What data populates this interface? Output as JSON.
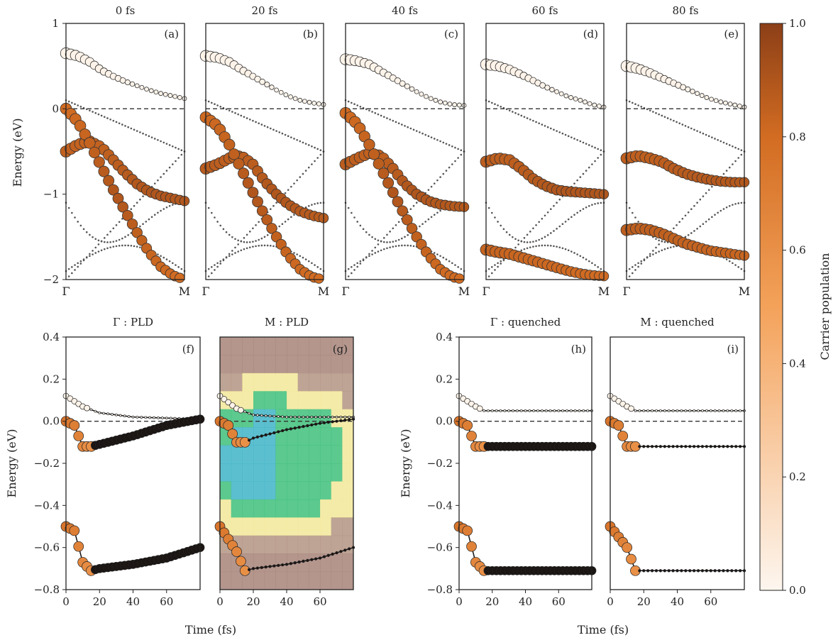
{
  "figure": {
    "top_titles": [
      "0 fs",
      "20 fs",
      "40 fs",
      "60 fs",
      "80 fs"
    ],
    "bottom_titles": [
      "Γ : PLD",
      "M : PLD",
      "Γ : quenched",
      "M : quenched"
    ],
    "top_ylabel": "Energy (eV)",
    "bottom_ylabel": "Energy (eV)",
    "xlabel": "Time (fs)",
    "colorbar_label": "Carrier population",
    "k_start_label": "Γ",
    "k_end_label": "M",
    "colors": {
      "cmap_low": "#fdf6ef",
      "cmap_mid": "#f4a25a",
      "cmap_high": "#8c3f17",
      "edge": "#333333",
      "heat_blue": "#3fb4c7",
      "heat_green": "#3fc07a",
      "heat_yellow": "#f2e79a",
      "heat_mauve": "#a78479"
    }
  },
  "chart_data": [
    {
      "type": "scatter",
      "panel": "(a)",
      "title": "0 fs",
      "xlabel": "",
      "ylabel": "Energy (eV)",
      "ylim": [
        -2,
        1
      ],
      "xticks": [
        "Γ",
        "M"
      ],
      "yticks": [
        -2,
        -1,
        0,
        1
      ],
      "series": [
        {
          "kind": "valence",
          "x": [
            0,
            0.1,
            0.2,
            0.3,
            0.4,
            0.5,
            0.6,
            0.7,
            0.8,
            0.9,
            1.0
          ],
          "y": [
            -0.5,
            -0.42,
            -0.38,
            -0.45,
            -0.6,
            -0.75,
            -0.88,
            -0.97,
            -1.02,
            -1.05,
            -1.08
          ]
        },
        {
          "kind": "valence",
          "x": [
            0,
            0.1,
            0.2,
            0.3,
            0.4,
            0.5,
            0.6,
            0.7,
            0.8,
            0.9,
            1.0
          ],
          "y": [
            0,
            -0.15,
            -0.4,
            -0.68,
            -0.95,
            -1.2,
            -1.45,
            -1.68,
            -1.85,
            -1.95,
            -2.0
          ]
        },
        {
          "kind": "conduction",
          "x": [
            0,
            0.1,
            0.2,
            0.3,
            0.4,
            0.5,
            0.6,
            0.7,
            0.8,
            0.9,
            1.0
          ],
          "y": [
            0.65,
            0.62,
            0.55,
            0.45,
            0.38,
            0.32,
            0.27,
            0.22,
            0.18,
            0.15,
            0.12
          ]
        }
      ]
    },
    {
      "type": "scatter",
      "panel": "(b)",
      "title": "20 fs",
      "ylim": [
        -2,
        1
      ],
      "xticks": [
        "Γ",
        "M"
      ],
      "series": [
        {
          "kind": "valence",
          "x": [
            0,
            0.1,
            0.2,
            0.3,
            0.4,
            0.5,
            0.6,
            0.7,
            0.8,
            0.9,
            1.0
          ],
          "y": [
            -0.7,
            -0.65,
            -0.58,
            -0.55,
            -0.65,
            -0.85,
            -1.0,
            -1.12,
            -1.2,
            -1.25,
            -1.28
          ]
        },
        {
          "kind": "valence",
          "x": [
            0,
            0.1,
            0.2,
            0.3,
            0.4,
            0.5,
            0.6,
            0.7,
            0.8,
            0.9,
            1.0
          ],
          "y": [
            -0.1,
            -0.2,
            -0.42,
            -0.7,
            -0.98,
            -1.25,
            -1.5,
            -1.72,
            -1.88,
            -1.97,
            -2.0
          ]
        },
        {
          "kind": "conduction",
          "x": [
            0,
            0.1,
            0.2,
            0.3,
            0.4,
            0.5,
            0.6,
            0.7,
            0.8,
            0.9,
            1.0
          ],
          "y": [
            0.62,
            0.6,
            0.55,
            0.46,
            0.38,
            0.3,
            0.22,
            0.15,
            0.1,
            0.07,
            0.05
          ]
        }
      ]
    },
    {
      "type": "scatter",
      "panel": "(c)",
      "title": "40 fs",
      "ylim": [
        -2,
        1
      ],
      "xticks": [
        "Γ",
        "M"
      ],
      "series": [
        {
          "kind": "valence",
          "x": [
            0,
            0.1,
            0.2,
            0.3,
            0.4,
            0.5,
            0.6,
            0.7,
            0.8,
            0.9,
            1.0
          ],
          "y": [
            -0.65,
            -0.58,
            -0.52,
            -0.55,
            -0.7,
            -0.88,
            -1.0,
            -1.08,
            -1.12,
            -1.14,
            -1.15
          ]
        },
        {
          "kind": "valence",
          "x": [
            0,
            0.1,
            0.2,
            0.3,
            0.4,
            0.5,
            0.6,
            0.7,
            0.8,
            0.9,
            1.0
          ],
          "y": [
            -0.05,
            -0.18,
            -0.42,
            -0.7,
            -0.98,
            -1.25,
            -1.5,
            -1.72,
            -1.88,
            -1.97,
            -2.0
          ]
        },
        {
          "kind": "conduction",
          "x": [
            0,
            0.1,
            0.2,
            0.3,
            0.4,
            0.5,
            0.6,
            0.7,
            0.8,
            0.9,
            1.0
          ],
          "y": [
            0.58,
            0.56,
            0.52,
            0.44,
            0.36,
            0.28,
            0.2,
            0.13,
            0.08,
            0.05,
            0.04
          ]
        }
      ]
    },
    {
      "type": "scatter",
      "panel": "(d)",
      "title": "60 fs",
      "ylim": [
        -2,
        1
      ],
      "xticks": [
        "Γ",
        "M"
      ],
      "series": [
        {
          "kind": "valence",
          "x": [
            0,
            0.1,
            0.2,
            0.3,
            0.4,
            0.5,
            0.6,
            0.7,
            0.8,
            0.9,
            1.0
          ],
          "y": [
            -0.62,
            -0.58,
            -0.6,
            -0.7,
            -0.82,
            -0.9,
            -0.95,
            -0.97,
            -0.98,
            -0.99,
            -1.0
          ]
        },
        {
          "kind": "valence",
          "x": [
            0,
            0.1,
            0.2,
            0.3,
            0.4,
            0.5,
            0.6,
            0.7,
            0.8,
            0.9,
            1.0
          ],
          "y": [
            -1.65,
            -1.68,
            -1.7,
            -1.74,
            -1.78,
            -1.82,
            -1.86,
            -1.9,
            -1.93,
            -1.95,
            -1.96
          ]
        },
        {
          "kind": "conduction",
          "x": [
            0,
            0.1,
            0.2,
            0.3,
            0.4,
            0.5,
            0.6,
            0.7,
            0.8,
            0.9,
            1.0
          ],
          "y": [
            0.52,
            0.5,
            0.46,
            0.4,
            0.33,
            0.26,
            0.2,
            0.14,
            0.1,
            0.05,
            0.02
          ]
        }
      ]
    },
    {
      "type": "scatter",
      "panel": "(e)",
      "title": "80 fs",
      "ylim": [
        -2,
        1
      ],
      "xticks": [
        "Γ",
        "M"
      ],
      "series": [
        {
          "kind": "valence",
          "x": [
            0,
            0.1,
            0.2,
            0.3,
            0.4,
            0.5,
            0.6,
            0.7,
            0.8,
            0.9,
            1.0
          ],
          "y": [
            -0.58,
            -0.55,
            -0.58,
            -0.62,
            -0.7,
            -0.76,
            -0.8,
            -0.83,
            -0.85,
            -0.86,
            -0.86
          ]
        },
        {
          "kind": "valence",
          "x": [
            0,
            0.1,
            0.2,
            0.3,
            0.4,
            0.5,
            0.6,
            0.7,
            0.8,
            0.9,
            1.0
          ],
          "y": [
            -1.42,
            -1.4,
            -1.42,
            -1.46,
            -1.52,
            -1.58,
            -1.62,
            -1.66,
            -1.68,
            -1.7,
            -1.72
          ]
        },
        {
          "kind": "conduction",
          "x": [
            0,
            0.1,
            0.2,
            0.3,
            0.4,
            0.5,
            0.6,
            0.7,
            0.8,
            0.9,
            1.0
          ],
          "y": [
            0.5,
            0.47,
            0.42,
            0.36,
            0.3,
            0.24,
            0.18,
            0.12,
            0.08,
            0.05,
            0.02
          ]
        }
      ]
    },
    {
      "type": "scatter",
      "panel": "(f)",
      "title": "Γ : PLD",
      "xlabel": "Time (fs)",
      "ylabel": "Energy (eV)",
      "xlim": [
        0,
        80
      ],
      "ylim": [
        -0.8,
        0.4
      ],
      "xticks": [
        0,
        20,
        40,
        60
      ],
      "yticks": [
        -0.8,
        -0.6,
        -0.4,
        -0.2,
        0.0,
        0.2,
        0.4
      ],
      "series": [
        {
          "kind": "upper",
          "x": [
            0,
            10,
            20,
            40,
            60,
            80
          ],
          "y": [
            0.12,
            0.07,
            0.04,
            0.02,
            0.015,
            0.01
          ]
        },
        {
          "kind": "middle",
          "x": [
            0,
            5,
            10,
            15,
            20,
            40,
            60,
            80
          ],
          "y": [
            0.0,
            -0.02,
            -0.12,
            -0.12,
            -0.11,
            -0.07,
            -0.02,
            0.01
          ]
        },
        {
          "kind": "lower",
          "x": [
            0,
            5,
            10,
            15,
            20,
            40,
            60,
            80
          ],
          "y": [
            -0.5,
            -0.52,
            -0.67,
            -0.71,
            -0.7,
            -0.68,
            -0.65,
            -0.6
          ]
        }
      ]
    },
    {
      "type": "heatmap",
      "panel": "(g)",
      "title": "M : PLD",
      "xlabel": "",
      "xlim": [
        0,
        80
      ],
      "ylim": [
        -0.8,
        0.4
      ],
      "xticks": [
        0,
        20,
        40,
        60
      ],
      "series": [
        {
          "kind": "upper",
          "x": [
            0,
            10,
            20,
            40,
            60,
            80
          ],
          "y": [
            0.12,
            0.06,
            0.03,
            0.02,
            0.02,
            0.02
          ]
        },
        {
          "kind": "middle",
          "x": [
            0,
            5,
            10,
            15,
            20,
            40,
            60,
            80
          ],
          "y": [
            0.0,
            -0.02,
            -0.1,
            -0.1,
            -0.08,
            -0.04,
            -0.01,
            0.01
          ]
        },
        {
          "kind": "lower",
          "x": [
            0,
            10,
            15,
            20,
            40,
            60,
            80
          ],
          "y": [
            -0.5,
            -0.62,
            -0.71,
            -0.7,
            -0.68,
            -0.65,
            -0.6
          ]
        }
      ]
    },
    {
      "type": "scatter",
      "panel": "(h)",
      "title": "Γ : quenched",
      "xlabel": "Time (fs)",
      "ylabel": "Energy (eV)",
      "xlim": [
        0,
        80
      ],
      "ylim": [
        -0.8,
        0.4
      ],
      "xticks": [
        0,
        20,
        40,
        60
      ],
      "yticks": [
        -0.8,
        -0.6,
        -0.4,
        -0.2,
        0.0,
        0.2,
        0.4
      ],
      "series": [
        {
          "kind": "upper",
          "x": [
            0,
            10,
            15,
            20,
            40,
            60,
            80
          ],
          "y": [
            0.12,
            0.07,
            0.05,
            0.05,
            0.05,
            0.05,
            0.05
          ]
        },
        {
          "kind": "middle",
          "x": [
            0,
            5,
            10,
            15,
            20,
            40,
            60,
            80
          ],
          "y": [
            0.0,
            -0.02,
            -0.12,
            -0.12,
            -0.12,
            -0.12,
            -0.12,
            -0.12
          ]
        },
        {
          "kind": "lower",
          "x": [
            0,
            5,
            10,
            15,
            20,
            40,
            60,
            80
          ],
          "y": [
            -0.5,
            -0.52,
            -0.67,
            -0.71,
            -0.71,
            -0.71,
            -0.71,
            -0.71
          ]
        }
      ]
    },
    {
      "type": "scatter",
      "panel": "(i)",
      "title": "M : quenched",
      "xlim": [
        0,
        80
      ],
      "ylim": [
        -0.8,
        0.4
      ],
      "xticks": [
        0,
        20,
        40,
        60
      ],
      "series": [
        {
          "kind": "upper",
          "x": [
            0,
            10,
            15,
            20,
            40,
            60,
            80
          ],
          "y": [
            0.12,
            0.07,
            0.05,
            0.05,
            0.05,
            0.05,
            0.05
          ]
        },
        {
          "kind": "middle",
          "x": [
            0,
            5,
            10,
            15,
            20,
            40,
            60,
            80
          ],
          "y": [
            0.0,
            -0.02,
            -0.12,
            -0.12,
            -0.12,
            -0.12,
            -0.12,
            -0.12
          ]
        },
        {
          "kind": "lower",
          "x": [
            0,
            10,
            15,
            20,
            40,
            60,
            80
          ],
          "y": [
            -0.5,
            -0.6,
            -0.71,
            -0.71,
            -0.71,
            -0.71,
            -0.71
          ]
        }
      ]
    },
    {
      "type": "colorbar",
      "label": "Carrier population",
      "ylim": [
        0,
        1
      ],
      "yticks": [
        0.0,
        0.2,
        0.4,
        0.6,
        0.8,
        1.0
      ]
    }
  ]
}
